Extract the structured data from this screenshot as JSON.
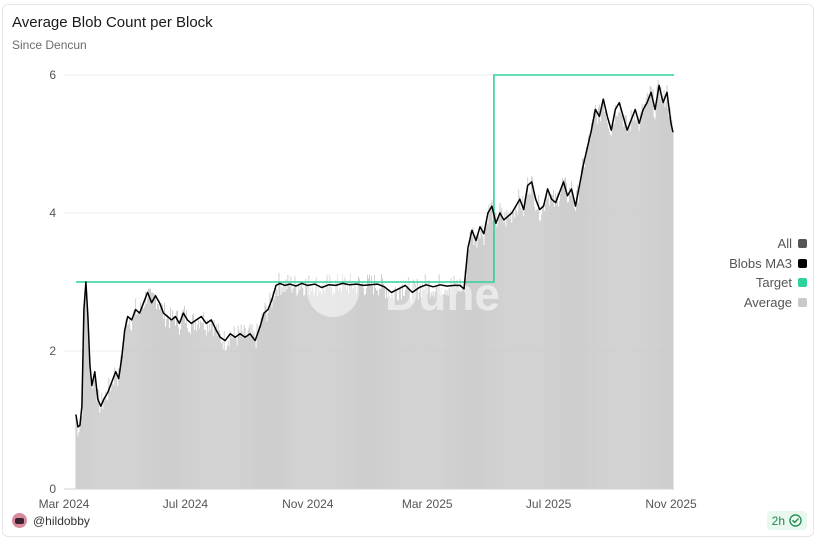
{
  "chart_title": "Average Blob Count per Block",
  "chart_subtitle": "Since Dencun",
  "author": "@hildobby",
  "refresh": {
    "label": "2h",
    "status_icon": "check-circle-icon",
    "color": "#1e8a4c"
  },
  "watermark": "Dune",
  "legend": [
    {
      "label": "All",
      "color": "#555555"
    },
    {
      "label": "Blobs MA3",
      "color": "#000000"
    },
    {
      "label": "Target",
      "color": "#2fd39a"
    },
    {
      "label": "Average",
      "color": "#c9c9c9"
    }
  ],
  "chart_data": {
    "type": "bar",
    "title": "Average Blob Count per Block",
    "subtitle": "Since Dencun",
    "xlabel": "",
    "ylabel": "",
    "xlim": [
      "2024-03-01",
      "2025-11-04"
    ],
    "ylim": [
      0,
      6
    ],
    "yticks": [
      0,
      2,
      4,
      6
    ],
    "xticks": [
      {
        "date": "2024-03-01",
        "label": "Mar 2024"
      },
      {
        "date": "2024-07-01",
        "label": "Jul 2024"
      },
      {
        "date": "2024-11-01",
        "label": "Nov 2024"
      },
      {
        "date": "2025-03-01",
        "label": "Mar 2025"
      },
      {
        "date": "2025-07-01",
        "label": "Jul 2025"
      },
      {
        "date": "2025-11-01",
        "label": "Nov 2025"
      }
    ],
    "grid": "horizontal",
    "legend_position": "right",
    "series": [
      {
        "name": "Blobs MA3",
        "kind": "line",
        "color": "#000000",
        "points": [
          [
            "2024-03-13",
            1.08
          ],
          [
            "2024-03-15",
            0.9
          ],
          [
            "2024-03-17",
            0.92
          ],
          [
            "2024-03-19",
            1.2
          ],
          [
            "2024-03-21",
            2.6
          ],
          [
            "2024-03-23",
            3.0
          ],
          [
            "2024-03-25",
            2.5
          ],
          [
            "2024-03-27",
            1.8
          ],
          [
            "2024-03-29",
            1.5
          ],
          [
            "2024-04-01",
            1.7
          ],
          [
            "2024-04-04",
            1.3
          ],
          [
            "2024-04-07",
            1.2
          ],
          [
            "2024-04-10",
            1.3
          ],
          [
            "2024-04-14",
            1.4
          ],
          [
            "2024-04-18",
            1.55
          ],
          [
            "2024-04-22",
            1.7
          ],
          [
            "2024-04-25",
            1.6
          ],
          [
            "2024-04-28",
            1.9
          ],
          [
            "2024-05-01",
            2.3
          ],
          [
            "2024-05-04",
            2.5
          ],
          [
            "2024-05-08",
            2.45
          ],
          [
            "2024-05-12",
            2.6
          ],
          [
            "2024-05-16",
            2.55
          ],
          [
            "2024-05-20",
            2.7
          ],
          [
            "2024-05-24",
            2.85
          ],
          [
            "2024-05-28",
            2.7
          ],
          [
            "2024-06-01",
            2.8
          ],
          [
            "2024-06-05",
            2.7
          ],
          [
            "2024-06-09",
            2.55
          ],
          [
            "2024-06-13",
            2.5
          ],
          [
            "2024-06-17",
            2.45
          ],
          [
            "2024-06-21",
            2.5
          ],
          [
            "2024-06-25",
            2.4
          ],
          [
            "2024-06-29",
            2.55
          ],
          [
            "2024-07-03",
            2.45
          ],
          [
            "2024-07-07",
            2.4
          ],
          [
            "2024-07-12",
            2.45
          ],
          [
            "2024-07-17",
            2.5
          ],
          [
            "2024-07-22",
            2.4
          ],
          [
            "2024-07-27",
            2.45
          ],
          [
            "2024-08-01",
            2.3
          ],
          [
            "2024-08-05",
            2.2
          ],
          [
            "2024-08-10",
            2.15
          ],
          [
            "2024-08-15",
            2.25
          ],
          [
            "2024-08-20",
            2.2
          ],
          [
            "2024-08-25",
            2.25
          ],
          [
            "2024-08-30",
            2.2
          ],
          [
            "2024-09-04",
            2.25
          ],
          [
            "2024-09-09",
            2.15
          ],
          [
            "2024-09-14",
            2.35
          ],
          [
            "2024-09-18",
            2.55
          ],
          [
            "2024-09-22",
            2.6
          ],
          [
            "2024-09-26",
            2.75
          ],
          [
            "2024-09-30",
            2.95
          ],
          [
            "2024-10-04",
            2.98
          ],
          [
            "2024-10-09",
            2.95
          ],
          [
            "2024-10-14",
            2.97
          ],
          [
            "2024-10-20",
            2.94
          ],
          [
            "2024-10-26",
            2.98
          ],
          [
            "2024-11-01",
            2.95
          ],
          [
            "2024-11-08",
            2.97
          ],
          [
            "2024-11-15",
            2.92
          ],
          [
            "2024-11-22",
            2.96
          ],
          [
            "2024-11-29",
            2.95
          ],
          [
            "2024-12-06",
            2.98
          ],
          [
            "2024-12-13",
            2.96
          ],
          [
            "2024-12-20",
            2.97
          ],
          [
            "2024-12-27",
            2.95
          ],
          [
            "2025-01-03",
            2.96
          ],
          [
            "2025-01-10",
            2.97
          ],
          [
            "2025-01-17",
            2.93
          ],
          [
            "2025-01-24",
            2.85
          ],
          [
            "2025-01-31",
            2.9
          ],
          [
            "2025-02-07",
            2.95
          ],
          [
            "2025-02-14",
            2.85
          ],
          [
            "2025-02-21",
            2.92
          ],
          [
            "2025-02-28",
            2.96
          ],
          [
            "2025-03-07",
            2.93
          ],
          [
            "2025-03-14",
            2.96
          ],
          [
            "2025-03-21",
            2.94
          ],
          [
            "2025-03-28",
            2.95
          ],
          [
            "2025-04-03",
            2.95
          ],
          [
            "2025-04-07",
            2.9
          ],
          [
            "2025-04-11",
            3.5
          ],
          [
            "2025-04-15",
            3.75
          ],
          [
            "2025-04-19",
            3.6
          ],
          [
            "2025-04-23",
            3.8
          ],
          [
            "2025-04-27",
            3.7
          ],
          [
            "2025-05-01",
            4.0
          ],
          [
            "2025-05-05",
            4.1
          ],
          [
            "2025-05-09",
            3.85
          ],
          [
            "2025-05-13",
            4.0
          ],
          [
            "2025-05-17",
            3.9
          ],
          [
            "2025-05-21",
            3.95
          ],
          [
            "2025-05-25",
            4.0
          ],
          [
            "2025-05-29",
            4.1
          ],
          [
            "2025-06-02",
            4.2
          ],
          [
            "2025-06-06",
            4.05
          ],
          [
            "2025-06-10",
            4.4
          ],
          [
            "2025-06-14",
            4.45
          ],
          [
            "2025-06-18",
            4.2
          ],
          [
            "2025-06-22",
            4.05
          ],
          [
            "2025-06-26",
            4.1
          ],
          [
            "2025-06-30",
            4.35
          ],
          [
            "2025-07-04",
            4.2
          ],
          [
            "2025-07-08",
            4.15
          ],
          [
            "2025-07-12",
            4.3
          ],
          [
            "2025-07-16",
            4.45
          ],
          [
            "2025-07-20",
            4.25
          ],
          [
            "2025-07-24",
            4.35
          ],
          [
            "2025-07-28",
            4.1
          ],
          [
            "2025-08-01",
            4.4
          ],
          [
            "2025-08-05",
            4.7
          ],
          [
            "2025-08-09",
            4.95
          ],
          [
            "2025-08-13",
            5.2
          ],
          [
            "2025-08-17",
            5.5
          ],
          [
            "2025-08-21",
            5.4
          ],
          [
            "2025-08-25",
            5.65
          ],
          [
            "2025-08-29",
            5.4
          ],
          [
            "2025-09-02",
            5.2
          ],
          [
            "2025-09-06",
            5.5
          ],
          [
            "2025-09-10",
            5.6
          ],
          [
            "2025-09-14",
            5.4
          ],
          [
            "2025-09-18",
            5.2
          ],
          [
            "2025-09-22",
            5.35
          ],
          [
            "2025-09-26",
            5.5
          ],
          [
            "2025-09-30",
            5.3
          ],
          [
            "2025-10-04",
            5.5
          ],
          [
            "2025-10-08",
            5.6
          ],
          [
            "2025-10-12",
            5.75
          ],
          [
            "2025-10-16",
            5.5
          ],
          [
            "2025-10-20",
            5.85
          ],
          [
            "2025-10-24",
            5.6
          ],
          [
            "2025-10-28",
            5.75
          ],
          [
            "2025-11-01",
            5.3
          ],
          [
            "2025-11-03",
            5.17
          ]
        ]
      },
      {
        "name": "Target",
        "kind": "step",
        "color": "#2fd39a",
        "points": [
          [
            "2024-03-13",
            3
          ],
          [
            "2025-05-07",
            3
          ],
          [
            "2025-05-07",
            6
          ],
          [
            "2025-11-04",
            6
          ]
        ]
      },
      {
        "name": "Average",
        "kind": "bar",
        "color": "#c9c9c9",
        "note_for_values": "daily bars track Blobs MA3 with small day-to-day variation"
      }
    ]
  }
}
